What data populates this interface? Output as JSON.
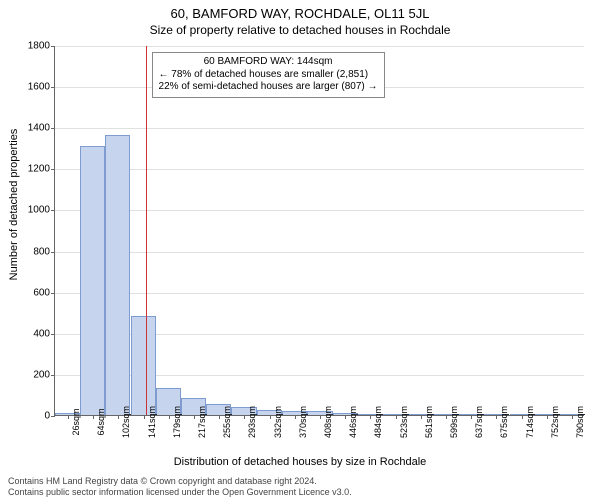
{
  "title": "60, BAMFORD WAY, ROCHDALE, OL11 5JL",
  "subtitle": "Size of property relative to detached houses in Rochdale",
  "ylabel": "Number of detached properties",
  "xlabel": "Distribution of detached houses by size in Rochdale",
  "chart": {
    "type": "histogram",
    "background_color": "#ffffff",
    "grid_color": "#e0e0e0",
    "axis_color": "#666666",
    "bar_color": "#c6d4ee",
    "bar_border_color": "#7f9cd1",
    "ylim": [
      0,
      1800
    ],
    "ytick_step": 200,
    "xtick_labels": [
      "26sqm",
      "64sqm",
      "102sqm",
      "141sqm",
      "179sqm",
      "217sqm",
      "255sqm",
      "293sqm",
      "332sqm",
      "370sqm",
      "408sqm",
      "446sqm",
      "484sqm",
      "523sqm",
      "561sqm",
      "599sqm",
      "637sqm",
      "675sqm",
      "714sqm",
      "752sqm",
      "790sqm"
    ],
    "xtick_positions": [
      26,
      64,
      102,
      141,
      179,
      217,
      255,
      293,
      332,
      370,
      408,
      446,
      484,
      523,
      561,
      599,
      637,
      675,
      714,
      752,
      790
    ],
    "xlim": [
      7,
      809
    ],
    "bars": [
      {
        "x": 26,
        "val": 10
      },
      {
        "x": 64,
        "val": 1310
      },
      {
        "x": 102,
        "val": 1360
      },
      {
        "x": 141,
        "val": 480
      },
      {
        "x": 179,
        "val": 130
      },
      {
        "x": 217,
        "val": 85
      },
      {
        "x": 255,
        "val": 55
      },
      {
        "x": 293,
        "val": 40
      },
      {
        "x": 332,
        "val": 25
      },
      {
        "x": 370,
        "val": 20
      },
      {
        "x": 408,
        "val": 18
      },
      {
        "x": 446,
        "val": 12
      },
      {
        "x": 484,
        "val": 6
      },
      {
        "x": 523,
        "val": 2
      },
      {
        "x": 561,
        "val": 2
      },
      {
        "x": 599,
        "val": 1
      },
      {
        "x": 637,
        "val": 1
      },
      {
        "x": 675,
        "val": 1
      },
      {
        "x": 714,
        "val": 0
      },
      {
        "x": 752,
        "val": 0
      },
      {
        "x": 790,
        "val": 1
      }
    ],
    "bar_width_sqm": 38,
    "marker": {
      "x": 144,
      "color": "#cc3333",
      "annotation": {
        "line1": "60 BAMFORD WAY: 144sqm",
        "line2": "← 78% of detached houses are smaller (2,851)",
        "line3": "22% of semi-detached houses are larger (807) →"
      }
    }
  },
  "footer": {
    "line1": "Contains HM Land Registry data © Crown copyright and database right 2024.",
    "line2": "Contains public sector information licensed under the Open Government Licence v3.0."
  },
  "font": {
    "title_size": 13,
    "subtitle_size": 12,
    "axis_label_size": 11,
    "tick_size": 10,
    "xtick_size": 9,
    "annotation_size": 10,
    "footer_size": 9
  }
}
